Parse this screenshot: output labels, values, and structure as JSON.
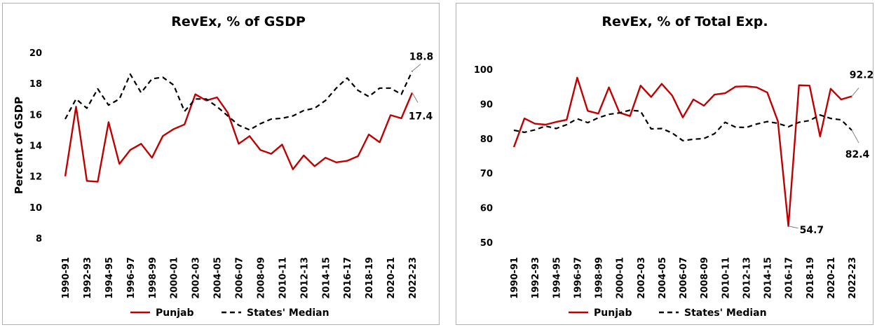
{
  "chart_data": [
    {
      "type": "line",
      "title": "RevEx, % of GSDP",
      "ylabel": "Percent of GSDP",
      "xlabel": "",
      "ylim": [
        8,
        20
      ],
      "yticks": [
        8,
        10,
        12,
        14,
        16,
        18,
        20
      ],
      "x": [
        "1990-91",
        "1991-92",
        "1992-93",
        "1993-94",
        "1994-95",
        "1995-96",
        "1996-97",
        "1997-98",
        "1998-99",
        "1999-00",
        "2000-01",
        "2001-02",
        "2002-03",
        "2003-04",
        "2004-05",
        "2005-06",
        "2006-07",
        "2007-08",
        "2008-09",
        "2009-10",
        "2010-11",
        "2011-12",
        "2012-13",
        "2013-14",
        "2014-15",
        "2015-16",
        "2016-17",
        "2017-18",
        "2018-19",
        "2019-20",
        "2020-21",
        "2021-22",
        "2022-23"
      ],
      "x_tick_labels": [
        "1990-91",
        "1992-93",
        "1994-95",
        "1996-97",
        "1998-99",
        "2000-01",
        "2002-03",
        "2004-05",
        "2006-07",
        "2008-09",
        "2010-11",
        "2012-13",
        "2014-15",
        "2016-17",
        "2018-19",
        "2020-21",
        "2022-23"
      ],
      "series": [
        {
          "name": "Punjab",
          "color": "#c00000",
          "style": "solid",
          "values": [
            12.0,
            16.5,
            11.7,
            11.65,
            15.5,
            12.8,
            13.7,
            14.1,
            13.2,
            14.6,
            15.05,
            15.35,
            17.3,
            16.9,
            17.1,
            16.1,
            14.1,
            14.6,
            13.7,
            13.45,
            14.05,
            12.45,
            13.35,
            12.65,
            13.2,
            12.9,
            13.0,
            13.3,
            14.7,
            14.2,
            15.95,
            15.75,
            17.4
          ]
        },
        {
          "name": "States' Median",
          "color": "#000000",
          "style": "dashed",
          "values": [
            15.7,
            17.0,
            16.4,
            17.65,
            16.6,
            17.0,
            18.6,
            17.4,
            18.3,
            18.4,
            17.9,
            16.2,
            17.0,
            17.0,
            16.5,
            15.9,
            15.3,
            15.0,
            15.4,
            15.7,
            15.75,
            15.9,
            16.25,
            16.4,
            16.9,
            17.7,
            18.35,
            17.55,
            17.15,
            17.7,
            17.7,
            17.3,
            18.8
          ]
        }
      ],
      "annotations": [
        {
          "text": "18.8",
          "series": "States' Median"
        },
        {
          "text": "17.4",
          "series": "Punjab"
        }
      ],
      "legend": [
        "Punjab",
        "States' Median"
      ],
      "legend_position": "bottom"
    },
    {
      "type": "line",
      "title": "RevEx, % of Total Exp.",
      "ylabel": "",
      "xlabel": "",
      "ylim": [
        50,
        100
      ],
      "yticks": [
        50,
        60,
        70,
        80,
        90,
        100
      ],
      "x": [
        "1990-91",
        "1991-92",
        "1992-93",
        "1993-94",
        "1994-95",
        "1995-96",
        "1996-97",
        "1997-98",
        "1998-99",
        "1999-00",
        "2000-01",
        "2001-02",
        "2002-03",
        "2003-04",
        "2004-05",
        "2005-06",
        "2006-07",
        "2007-08",
        "2008-09",
        "2009-10",
        "2010-11",
        "2011-12",
        "2012-13",
        "2013-14",
        "2014-15",
        "2015-16",
        "2016-17",
        "2017-18",
        "2018-19",
        "2019-20",
        "2020-21",
        "2021-22",
        "2022-23"
      ],
      "x_tick_labels": [
        "1990-91",
        "1992-93",
        "1994-95",
        "1996-97",
        "1998-99",
        "2000-01",
        "2002-03",
        "2004-05",
        "2006-07",
        "2008-09",
        "2010-11",
        "2012-13",
        "2014-15",
        "2016-17",
        "2018-19",
        "2020-21",
        "2022-23"
      ],
      "series": [
        {
          "name": "Punjab",
          "color": "#c00000",
          "style": "solid",
          "values": [
            77.5,
            85.8,
            84.3,
            84.0,
            84.8,
            85.4,
            97.6,
            88.0,
            87.2,
            94.8,
            87.5,
            86.5,
            95.3,
            92.0,
            95.8,
            92.4,
            86.1,
            91.3,
            89.5,
            92.7,
            93.1,
            95.0,
            95.1,
            94.8,
            93.3,
            85.0,
            54.7,
            95.4,
            95.3,
            80.6,
            94.4,
            91.3,
            92.2
          ]
        },
        {
          "name": "States' Median",
          "color": "#000000",
          "style": "dashed",
          "values": [
            82.4,
            81.8,
            82.5,
            83.6,
            82.9,
            84.0,
            85.7,
            84.6,
            86.0,
            87.0,
            87.4,
            88.2,
            87.9,
            82.8,
            82.9,
            81.6,
            79.4,
            79.8,
            80.0,
            81.4,
            84.7,
            83.3,
            83.2,
            84.2,
            84.9,
            84.4,
            83.4,
            84.7,
            85.2,
            86.8,
            85.8,
            85.4,
            82.4
          ]
        }
      ],
      "annotations": [
        {
          "text": "92.2",
          "series": "Punjab"
        },
        {
          "text": "82.4",
          "series": "States' Median"
        },
        {
          "text": "54.7",
          "series": "Punjab"
        }
      ],
      "legend": [
        "Punjab",
        "States' Median"
      ],
      "legend_position": "bottom"
    }
  ]
}
